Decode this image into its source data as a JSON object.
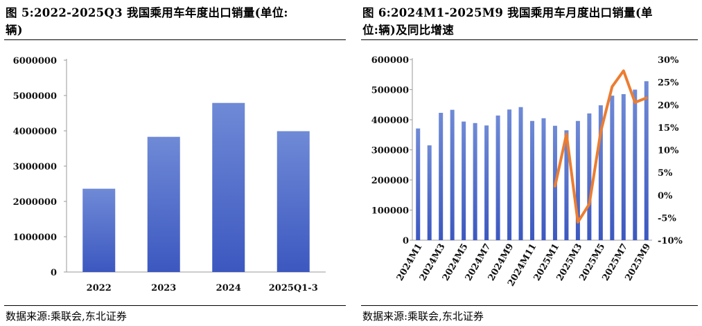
{
  "left_panel": {
    "title": "图 5:2022-2025Q3 我国乘用车年度出口销量(单位:",
    "title_line2": "辆)",
    "source": "数据来源:乘联会,东北证券"
  },
  "right_panel": {
    "title": "图 6:2024M1-2025M9 我国乘用车月度出口销量(单",
    "title_line2": "位:辆)及同比增速",
    "source": "数据来源:乘联会,东北证券"
  },
  "colors": {
    "bar_top": "#6f8ad6",
    "bar_bottom": "#3c58c0",
    "line": "#ec7d31"
  },
  "chart_data": [
    {
      "type": "bar",
      "categories": [
        "2022",
        "2023",
        "2024",
        "2025Q1-3"
      ],
      "values": [
        2360000,
        3830000,
        4790000,
        3990000
      ],
      "ylim": [
        0,
        6000000
      ],
      "yticks": [
        "0",
        "1000000",
        "2000000",
        "3000000",
        "4000000",
        "5000000",
        "6000000"
      ],
      "title": "",
      "xlabel": "",
      "ylabel": "",
      "grid": false,
      "legend": "none"
    },
    {
      "type": "bar+line",
      "categories": [
        "2024M1",
        "2024M2",
        "2024M3",
        "2024M4",
        "2024M5",
        "2024M6",
        "2024M7",
        "2024M8",
        "2024M9",
        "2024M10",
        "2024M11",
        "2024M12",
        "2025M1",
        "2025M2",
        "2025M3",
        "2025M4",
        "2025M5",
        "2025M6",
        "2025M7",
        "2025M8",
        "2025M9"
      ],
      "xtick_labels": [
        "2024M1",
        "2024M3",
        "2024M5",
        "2024M7",
        "2024M9",
        "2024M11",
        "2025M1",
        "2025M3",
        "2025M5",
        "2025M7",
        "2025M9"
      ],
      "bar_values": [
        371000,
        315000,
        423000,
        433000,
        394000,
        389000,
        381000,
        414000,
        434000,
        442000,
        396000,
        405000,
        380000,
        365000,
        396000,
        421000,
        448000,
        480000,
        485000,
        500000,
        528000
      ],
      "ylim": [
        0,
        600000
      ],
      "yticks": [
        "0",
        "100000",
        "200000",
        "300000",
        "400000",
        "500000",
        "600000"
      ],
      "line_values": [
        null,
        null,
        null,
        null,
        null,
        null,
        null,
        null,
        null,
        null,
        null,
        null,
        2,
        13.5,
        -6,
        -2,
        14,
        24,
        27.5,
        20.5,
        21.5
      ],
      "y2lim": [
        -10,
        30
      ],
      "y2ticks": [
        "-10%",
        "-5%",
        "0%",
        "5%",
        "10%",
        "15%",
        "20%",
        "25%",
        "30%"
      ],
      "title": "",
      "xlabel": "",
      "ylabel": "",
      "grid": false,
      "legend": "none"
    }
  ]
}
